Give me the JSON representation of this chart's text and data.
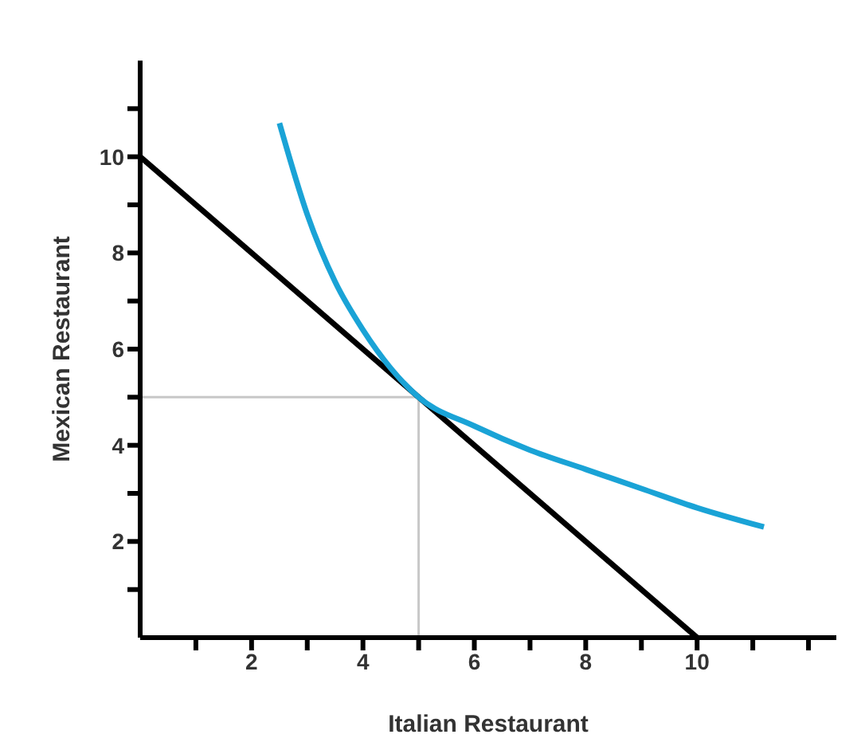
{
  "chart_data": {
    "type": "line",
    "xlabel": "Italian Restaurant",
    "ylabel": "Mexican Restaurant",
    "xlim": [
      0,
      12.5
    ],
    "ylim": [
      0,
      12
    ],
    "xticks": [
      {
        "value": 1,
        "label": null
      },
      2,
      {
        "value": 3,
        "label": null
      },
      4,
      {
        "value": 5,
        "label": null
      },
      6,
      {
        "value": 7,
        "label": null
      },
      8,
      {
        "value": 9,
        "label": null
      },
      10,
      {
        "value": 11,
        "label": null
      },
      {
        "value": 12,
        "label": null
      }
    ],
    "yticks": [
      {
        "value": 1,
        "label": null
      },
      2,
      {
        "value": 3,
        "label": null
      },
      4,
      {
        "value": 5,
        "label": null
      },
      6,
      {
        "value": 7,
        "label": null
      },
      8,
      {
        "value": 9,
        "label": null
      },
      10,
      {
        "value": 11,
        "label": null
      }
    ],
    "grid": false,
    "marker": "none",
    "series": [
      {
        "color": "#c8c8c8",
        "x": [
          0,
          5,
          5
        ],
        "values": [
          5,
          5,
          0
        ]
      },
      {
        "color": "#000000",
        "x": [
          0,
          10
        ],
        "values": [
          10,
          0
        ]
      },
      {
        "color": "#1aa3d6",
        "x": [
          2.5,
          3,
          3.5,
          4,
          4.5,
          5,
          6,
          7,
          8,
          9,
          10,
          11.2
        ],
        "values": [
          10.7,
          8.8,
          7.4,
          6.4,
          5.6,
          5,
          4.4,
          3.9,
          3.5,
          3.1,
          2.7,
          2.3
        ]
      }
    ]
  }
}
